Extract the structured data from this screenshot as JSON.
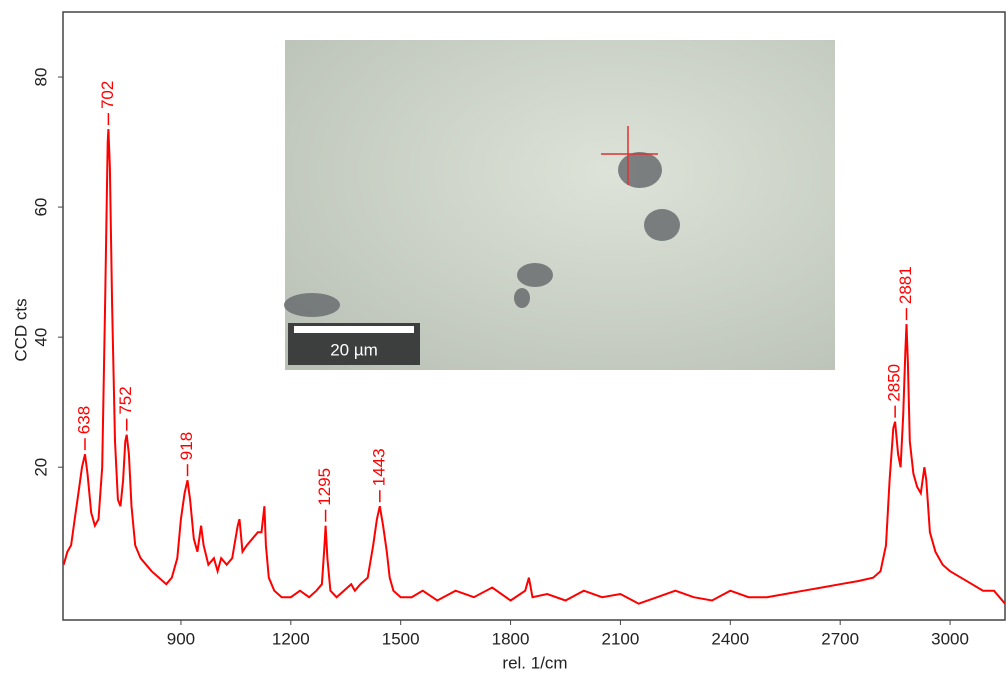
{
  "chart_data": {
    "type": "line",
    "xlabel": "rel. 1/cm",
    "ylabel": "CCD cts",
    "xlim": [
      578,
      3150
    ],
    "ylim": [
      -3.5,
      90
    ],
    "xticks": [
      900,
      1200,
      1500,
      1800,
      2100,
      2400,
      2700,
      3000
    ],
    "yticks": [
      20,
      40,
      60,
      80
    ],
    "x": [
      580,
      590,
      600,
      610,
      620,
      630,
      638,
      645,
      655,
      665,
      675,
      685,
      693,
      700,
      702,
      706,
      712,
      720,
      728,
      735,
      742,
      748,
      752,
      758,
      765,
      775,
      790,
      805,
      820,
      840,
      860,
      875,
      890,
      900,
      910,
      918,
      925,
      935,
      945,
      955,
      962,
      975,
      990,
      1000,
      1010,
      1025,
      1040,
      1055,
      1060,
      1068,
      1080,
      1095,
      1110,
      1120,
      1128,
      1132,
      1140,
      1155,
      1175,
      1200,
      1225,
      1250,
      1270,
      1285,
      1292,
      1295,
      1300,
      1308,
      1325,
      1345,
      1365,
      1375,
      1390,
      1410,
      1425,
      1435,
      1443,
      1452,
      1462,
      1470,
      1480,
      1500,
      1530,
      1560,
      1600,
      1650,
      1700,
      1750,
      1800,
      1840,
      1850,
      1860,
      1900,
      1950,
      2000,
      2050,
      2100,
      2150,
      2200,
      2250,
      2300,
      2350,
      2400,
      2450,
      2500,
      2550,
      2600,
      2650,
      2700,
      2750,
      2790,
      2810,
      2825,
      2835,
      2845,
      2850,
      2858,
      2865,
      2872,
      2878,
      2881,
      2885,
      2890,
      2900,
      2910,
      2920,
      2930,
      2935,
      2945,
      2960,
      2980,
      3000,
      3030,
      3060,
      3090,
      3120,
      3150
    ],
    "series": [
      {
        "color": "#ff0000",
        "values": [
          5,
          7,
          8,
          12,
          16,
          20,
          22,
          19,
          13,
          11,
          12,
          20,
          45,
          70,
          72,
          66,
          45,
          24,
          15,
          14,
          18,
          24,
          25,
          22,
          14,
          8,
          6,
          5,
          4,
          3,
          2,
          3,
          6,
          12,
          16,
          18,
          15,
          9,
          7,
          11,
          8,
          5,
          6,
          4,
          6,
          5,
          6,
          11,
          12,
          7,
          8,
          9,
          10,
          10,
          14,
          8,
          3,
          1,
          0,
          0,
          1,
          0,
          1,
          2,
          8,
          11,
          6,
          1,
          0,
          1,
          2,
          1,
          2,
          3,
          8,
          12,
          14,
          11,
          7,
          3,
          1,
          0,
          0,
          1,
          -0.5,
          1,
          0,
          1.5,
          -0.5,
          1,
          3,
          0,
          0.5,
          -0.5,
          1,
          0,
          0.5,
          -1,
          0,
          1,
          0,
          -0.5,
          1,
          0,
          0,
          0.5,
          1,
          1.5,
          2,
          2.5,
          3,
          4,
          8,
          18,
          26,
          27,
          22,
          20,
          28,
          38,
          42,
          36,
          24,
          19,
          17,
          16,
          20,
          18,
          10,
          7,
          5,
          4,
          3,
          2,
          1,
          1,
          -1
        ]
      }
    ],
    "annotations": [
      {
        "x": 638,
        "y": 22
      },
      {
        "x": 702,
        "y": 72
      },
      {
        "x": 752,
        "y": 25
      },
      {
        "x": 918,
        "y": 18
      },
      {
        "x": 1295,
        "y": 11
      },
      {
        "x": 1443,
        "y": 14
      },
      {
        "x": 2850,
        "y": 27
      },
      {
        "x": 2881,
        "y": 42
      }
    ],
    "inset": {
      "scale_bar_label": "20 µm"
    }
  }
}
